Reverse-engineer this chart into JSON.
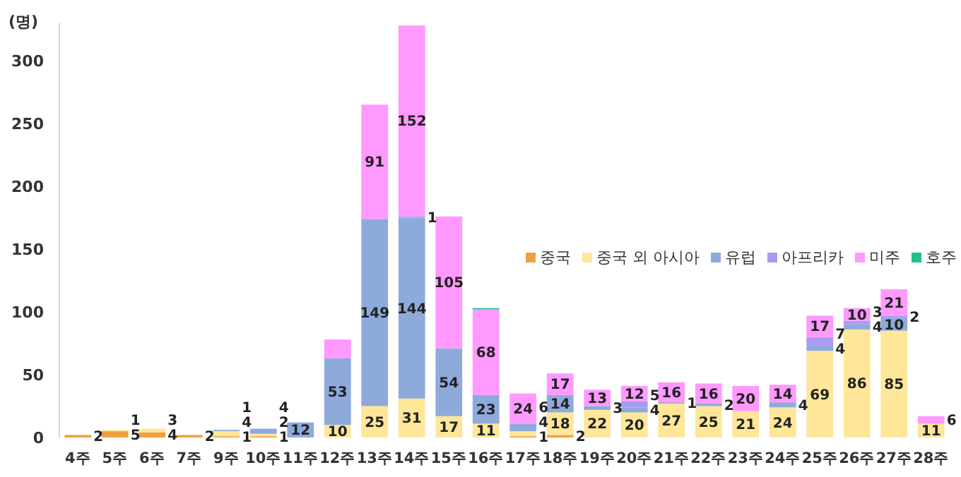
{
  "chart_data": {
    "type": "bar",
    "stacked": true,
    "ylabel": "(명)",
    "ylim": [
      0,
      330
    ],
    "yticks": [
      0,
      50,
      100,
      150,
      200,
      250,
      300
    ],
    "grid": false,
    "legend": "right",
    "categories": [
      "4주",
      "5주",
      "6주",
      "7주",
      "9주",
      "10주",
      "11주",
      "12주",
      "13주",
      "14주",
      "15주",
      "16주",
      "17주",
      "18주",
      "19주",
      "20주",
      "21주",
      "22주",
      "23주",
      "24주",
      "25주",
      "26주",
      "27주",
      "28주"
    ],
    "series": [
      {
        "name": "중국",
        "color": "#f0a040",
        "values": [
          2,
          5,
          4,
          2,
          1,
          1,
          null,
          null,
          null,
          null,
          null,
          null,
          1,
          2,
          null,
          null,
          null,
          null,
          null,
          null,
          null,
          null,
          null,
          null
        ],
        "value_labels": [
          "2",
          "5",
          "4",
          "2",
          "1",
          "1",
          null,
          null,
          null,
          null,
          null,
          null,
          "1",
          "2",
          null,
          null,
          null,
          null,
          null,
          null,
          null,
          null,
          null,
          null
        ]
      },
      {
        "name": "중국 외 아시아",
        "color": "#ffe699",
        "values": [
          null,
          1,
          3,
          null,
          4,
          2,
          null,
          10,
          25,
          31,
          17,
          11,
          4,
          18,
          22,
          20,
          27,
          25,
          21,
          24,
          69,
          86,
          85,
          11
        ],
        "value_labels": [
          null,
          "1",
          "3",
          null,
          "4",
          "2",
          null,
          "10",
          "25",
          "31",
          "17",
          "11",
          "4",
          "18",
          "22",
          "20",
          "27",
          "25",
          "21",
          "24",
          "69",
          "86",
          "85",
          "11"
        ]
      },
      {
        "name": "유럽",
        "color": "#8eaadb",
        "values": [
          null,
          null,
          null,
          null,
          1,
          4,
          12,
          53,
          149,
          144,
          54,
          23,
          6,
          14,
          3,
          4,
          1,
          2,
          null,
          4,
          4,
          4,
          10,
          null
        ],
        "value_labels": [
          null,
          null,
          null,
          null,
          "1",
          "4",
          "12",
          "53",
          "149",
          "144",
          "54",
          "23",
          "6",
          "14",
          "3",
          "4",
          "1",
          "2",
          null,
          "4",
          "4",
          "4",
          "10",
          null
        ]
      },
      {
        "name": "아프리카",
        "color": "#a99cf0",
        "values": [
          null,
          null,
          null,
          null,
          null,
          null,
          null,
          null,
          null,
          1,
          null,
          null,
          null,
          null,
          null,
          5,
          null,
          null,
          null,
          null,
          7,
          3,
          2,
          null
        ],
        "value_labels": [
          null,
          null,
          null,
          null,
          null,
          null,
          null,
          null,
          null,
          "1",
          null,
          null,
          null,
          null,
          null,
          "5",
          null,
          null,
          null,
          null,
          "7",
          "3",
          "2",
          null
        ]
      },
      {
        "name": "미주",
        "color": "#ff99ff",
        "values": [
          null,
          null,
          null,
          null,
          null,
          null,
          null,
          15,
          91,
          152,
          105,
          68,
          24,
          17,
          13,
          12,
          16,
          16,
          20,
          14,
          17,
          10,
          21,
          6
        ],
        "value_labels": [
          null,
          null,
          null,
          null,
          null,
          null,
          null,
          null,
          "91",
          "152",
          "105",
          "68",
          "24",
          "17",
          "13",
          "12",
          "16",
          "16",
          "20",
          "14",
          "17",
          "10",
          "21",
          "6"
        ]
      },
      {
        "name": "호주",
        "color": "#1fbf8f",
        "values": [
          null,
          null,
          null,
          null,
          null,
          null,
          null,
          null,
          null,
          null,
          null,
          1,
          null,
          null,
          null,
          null,
          null,
          null,
          null,
          null,
          null,
          null,
          null,
          null
        ],
        "value_labels": [
          null,
          null,
          null,
          null,
          null,
          null,
          null,
          null,
          null,
          null,
          null,
          null,
          null,
          null,
          null,
          null,
          null,
          null,
          null,
          null,
          null,
          null,
          null,
          null
        ]
      }
    ]
  }
}
